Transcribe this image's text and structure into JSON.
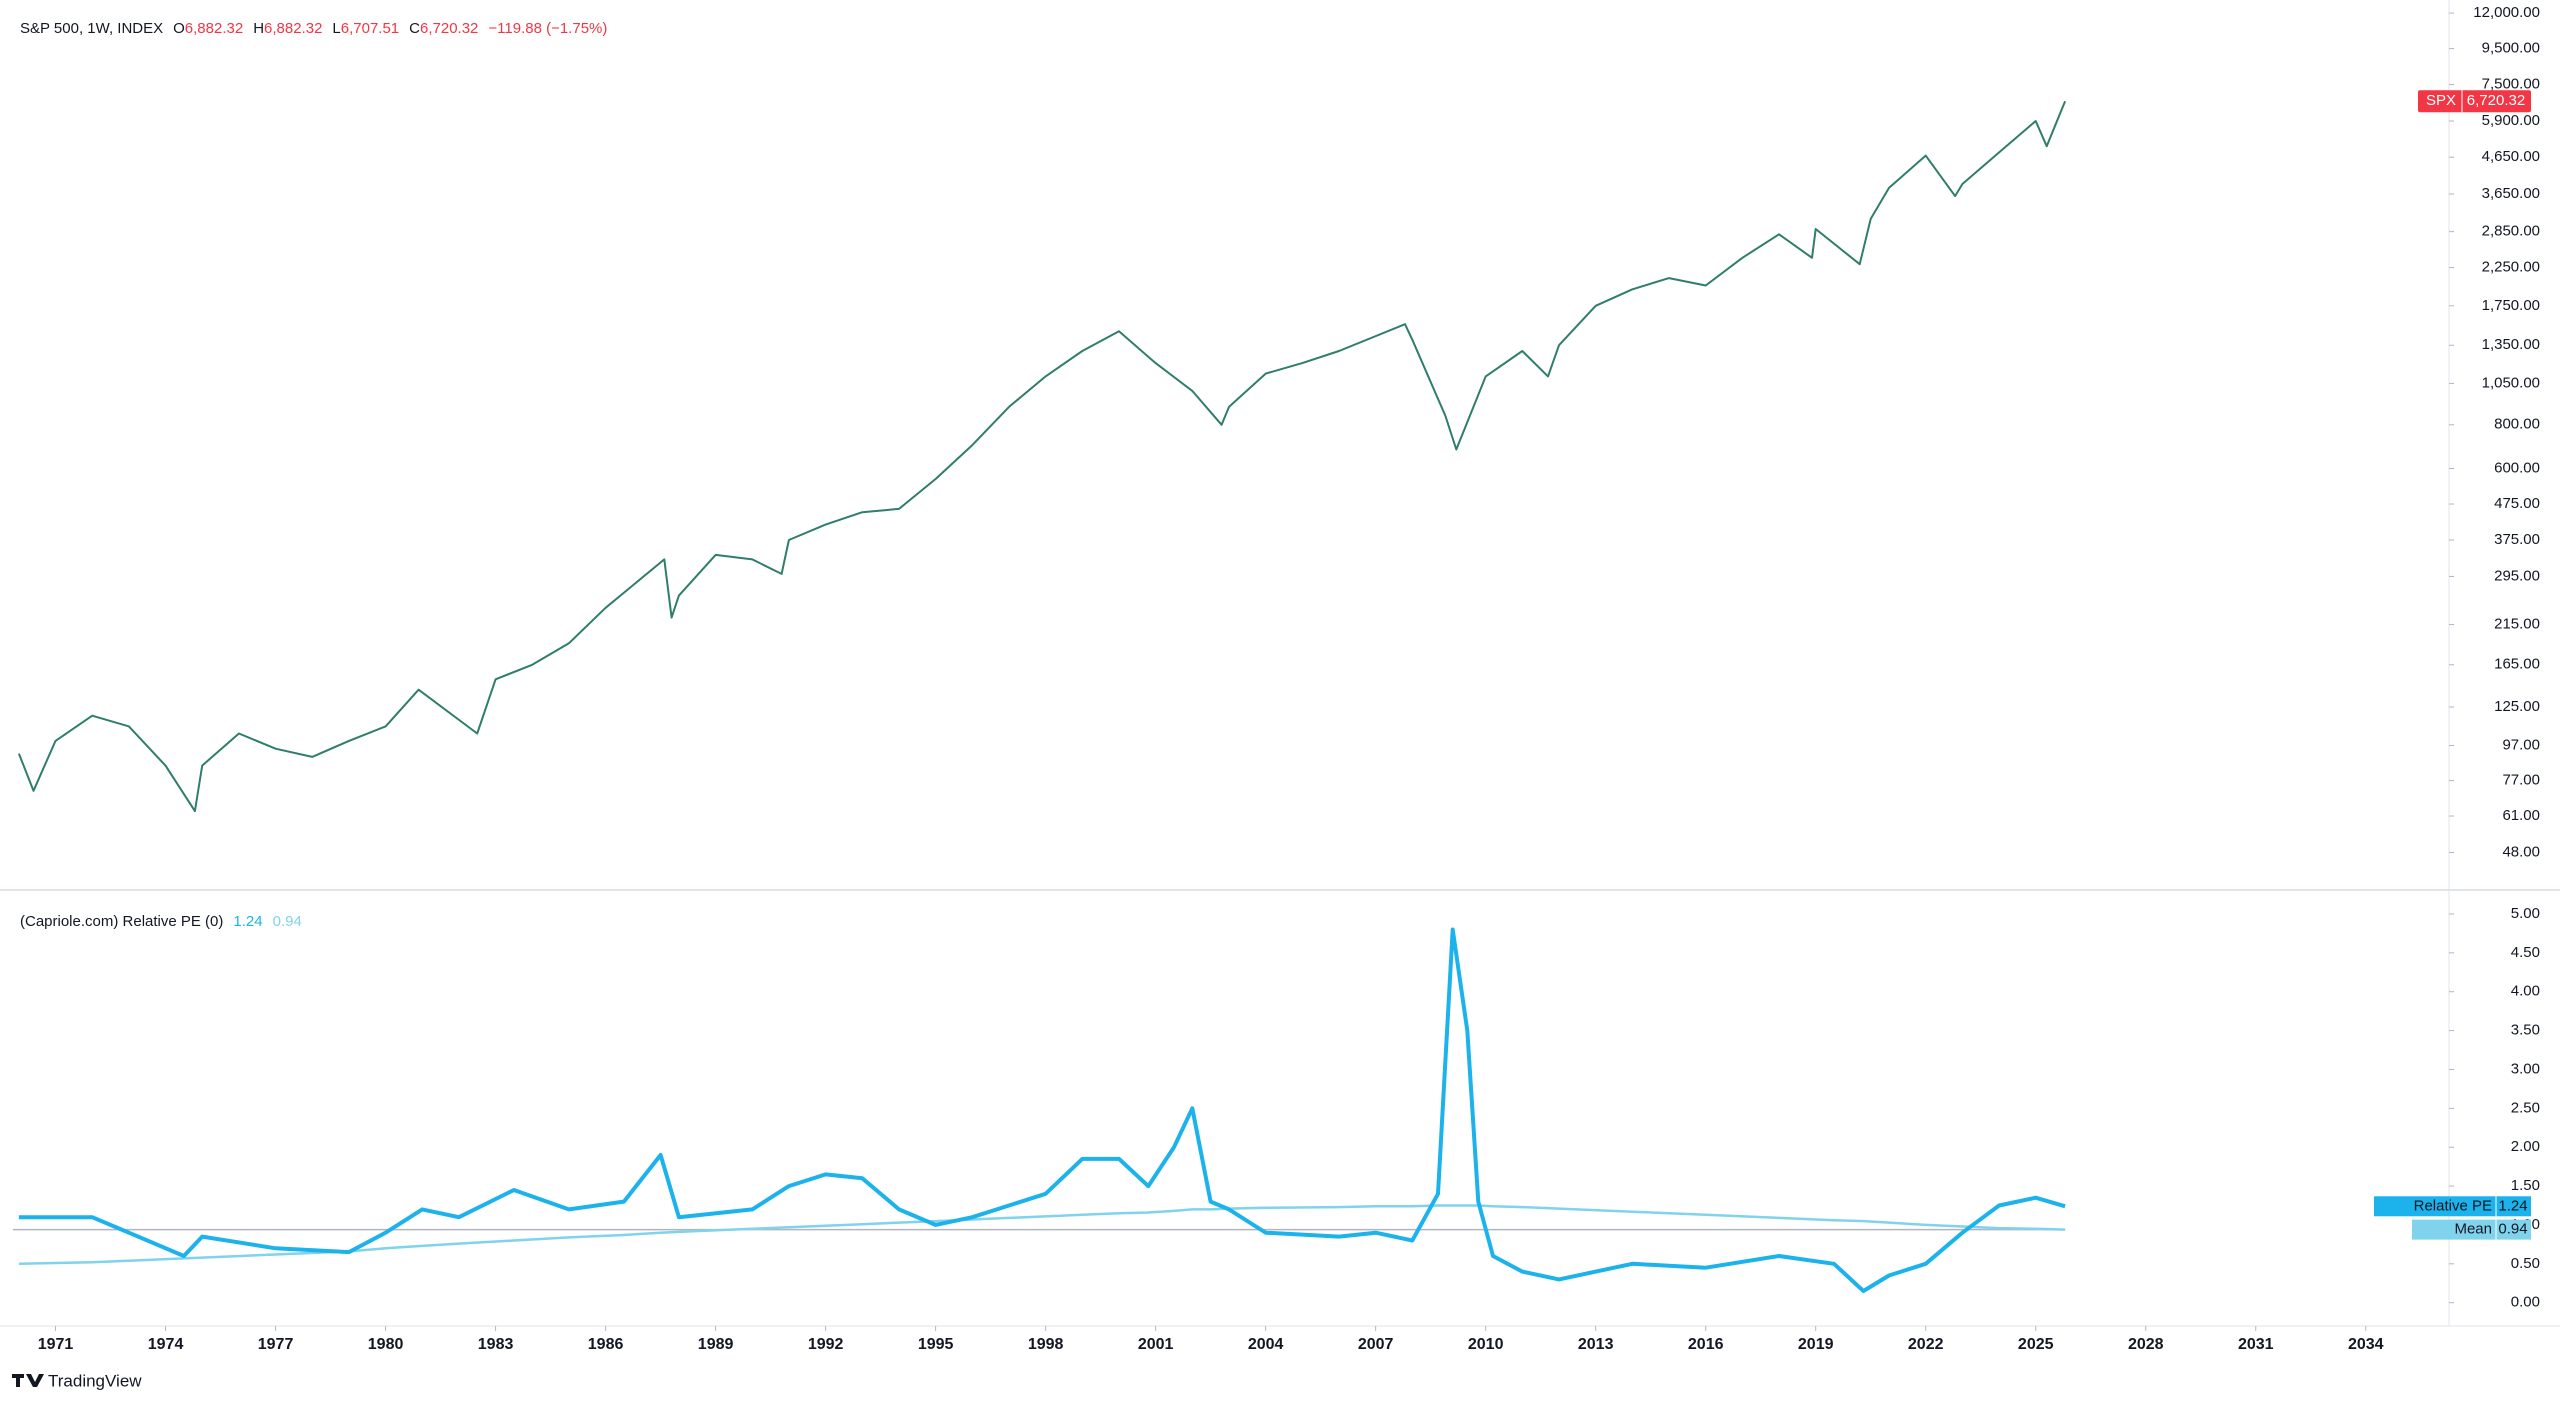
{
  "chart_data": [
    {
      "type": "line",
      "title": "S&P 500, 1W, INDEX",
      "log_scale": true,
      "ohlc": [
        {
          "label": "O",
          "value": "6,882.32"
        },
        {
          "label": "H",
          "value": "6,882.32"
        },
        {
          "label": "L",
          "value": "6,707.51"
        },
        {
          "label": "C",
          "value": "6,720.32"
        }
      ],
      "change": "−119.88 (−1.75%)",
      "x": [
        1970,
        1970.4,
        1971,
        1972,
        1973,
        1974,
        1974.8,
        1975,
        1976,
        1977,
        1978,
        1979,
        1980,
        1980.9,
        1982.5,
        1983,
        1984,
        1985,
        1986,
        1987.6,
        1987.8,
        1988,
        1989,
        1990,
        1990.8,
        1991,
        1992,
        1993,
        1994,
        1995,
        1996,
        1997,
        1998,
        1999,
        2000,
        2001,
        2002,
        2002.8,
        2003,
        2004,
        2005,
        2006,
        2007.8,
        2008,
        2008.9,
        2009.2,
        2010,
        2011,
        2011.7,
        2012,
        2013,
        2014,
        2015,
        2016,
        2017,
        2018,
        2018.9,
        2019,
        2020.2,
        2020.5,
        2021,
        2022,
        2022.8,
        2023,
        2024,
        2025,
        2025.3,
        2025.8
      ],
      "series": [
        {
          "name": "SPX",
          "color": "#2f7d6b",
          "values": [
            92,
            72,
            100,
            118,
            110,
            85,
            63,
            85,
            105,
            95,
            90,
            100,
            110,
            140,
            105,
            150,
            165,
            190,
            240,
            330,
            225,
            260,
            340,
            330,
            300,
            375,
            415,
            450,
            460,
            560,
            700,
            900,
            1100,
            1300,
            1480,
            1200,
            1000,
            800,
            900,
            1120,
            1200,
            1300,
            1550,
            1400,
            850,
            680,
            1100,
            1300,
            1100,
            1350,
            1750,
            1950,
            2100,
            2000,
            2400,
            2800,
            2400,
            2900,
            2300,
            3100,
            3800,
            4700,
            3600,
            3900,
            4800,
            5900,
            5000,
            6720.32
          ]
        }
      ],
      "xlim": [
        1969.84,
        2036.27
      ],
      "ylim": [
        37.5,
        13080
      ],
      "yticks": [
        {
          "value": 12000,
          "label": "12,000.00"
        },
        {
          "value": 9500,
          "label": "9,500.00"
        },
        {
          "value": 7500,
          "label": "7,500.00"
        },
        {
          "value": 5900,
          "label": "5,900.00"
        },
        {
          "value": 4650,
          "label": "4,650.00"
        },
        {
          "value": 3650,
          "label": "3,650.00"
        },
        {
          "value": 2850,
          "label": "2,850.00"
        },
        {
          "value": 2250,
          "label": "2,250.00"
        },
        {
          "value": 1750,
          "label": "1,750.00"
        },
        {
          "value": 1350,
          "label": "1,350.00"
        },
        {
          "value": 1050,
          "label": "1,050.00"
        },
        {
          "value": 800,
          "label": "800.00"
        },
        {
          "value": 600,
          "label": "600.00"
        },
        {
          "value": 475,
          "label": "475.00"
        },
        {
          "value": 375,
          "label": "375.00"
        },
        {
          "value": 295,
          "label": "295.00"
        },
        {
          "value": 215,
          "label": "215.00"
        },
        {
          "value": 165,
          "label": "165.00"
        },
        {
          "value": 125,
          "label": "125.00"
        },
        {
          "value": 97,
          "label": "97.00"
        },
        {
          "value": 77,
          "label": "77.00"
        },
        {
          "value": 61,
          "label": "61.00"
        },
        {
          "value": 48,
          "label": "48.00"
        }
      ]
    },
    {
      "type": "line",
      "title": "(Capriole.com) Relative PE (0)",
      "x": [
        1970,
        1972,
        1973,
        1974.5,
        1975,
        1977,
        1979,
        1980,
        1981,
        1982,
        1983.5,
        1985,
        1986.5,
        1987.5,
        1988,
        1990,
        1991,
        1992,
        1993,
        1994,
        1995,
        1996,
        1997,
        1998,
        1999,
        2000,
        2000.8,
        2001.5,
        2002,
        2002.5,
        2003,
        2004,
        2006,
        2007,
        2008,
        2008.7,
        2009.1,
        2009.5,
        2009.8,
        2010.2,
        2011,
        2012,
        2014,
        2016,
        2018,
        2019.5,
        2020.3,
        2021,
        2022,
        2023,
        2024,
        2025,
        2025.8
      ],
      "series": [
        {
          "name": "Relative PE",
          "color": "#1cb2ec",
          "values": [
            1.1,
            1.1,
            0.9,
            0.6,
            0.85,
            0.7,
            0.65,
            0.9,
            1.2,
            1.1,
            1.45,
            1.2,
            1.3,
            1.9,
            1.1,
            1.2,
            1.5,
            1.65,
            1.6,
            1.2,
            1.0,
            1.1,
            1.25,
            1.4,
            1.85,
            1.85,
            1.5,
            2.0,
            2.5,
            1.3,
            1.2,
            0.9,
            0.85,
            0.9,
            0.8,
            1.4,
            4.8,
            3.5,
            1.3,
            0.6,
            0.4,
            0.3,
            0.5,
            0.45,
            0.6,
            0.5,
            0.15,
            0.35,
            0.5,
            0.9,
            1.25,
            1.35,
            1.24
          ]
        },
        {
          "name": "Mean",
          "color": "#7fd3ec",
          "values": [
            0.5,
            0.52,
            0.54,
            0.57,
            0.58,
            0.62,
            0.66,
            0.7,
            0.73,
            0.76,
            0.8,
            0.84,
            0.87,
            0.9,
            0.91,
            0.95,
            0.97,
            0.99,
            1.01,
            1.03,
            1.05,
            1.07,
            1.09,
            1.11,
            1.13,
            1.15,
            1.16,
            1.18,
            1.2,
            1.2,
            1.21,
            1.22,
            1.23,
            1.24,
            1.24,
            1.25,
            1.25,
            1.25,
            1.25,
            1.24,
            1.23,
            1.21,
            1.17,
            1.13,
            1.09,
            1.06,
            1.05,
            1.03,
            1.0,
            0.98,
            0.96,
            0.95,
            0.94
          ]
        }
      ],
      "hline": 0.94,
      "xlim": [
        1969.84,
        2036.27
      ],
      "ylim": [
        -0.3,
        5.27
      ],
      "yticks": [
        {
          "value": 0,
          "label": "0.00"
        },
        {
          "value": 0.5,
          "label": "0.50"
        },
        {
          "value": 1,
          "label": "1.00"
        },
        {
          "value": 1.5,
          "label": "1.50"
        },
        {
          "value": 2,
          "label": "2.00"
        },
        {
          "value": 2.5,
          "label": "2.50"
        },
        {
          "value": 3,
          "label": "3.00"
        },
        {
          "value": 3.5,
          "label": "3.50"
        },
        {
          "value": 4,
          "label": "4.00"
        },
        {
          "value": 4.5,
          "label": "4.50"
        },
        {
          "value": 5,
          "label": "5.00"
        }
      ],
      "xticks": [
        1971,
        1974,
        1977,
        1980,
        1983,
        1986,
        1989,
        1992,
        1995,
        1998,
        2001,
        2004,
        2007,
        2010,
        2013,
        2016,
        2019,
        2022,
        2025,
        2028,
        2031,
        2034
      ]
    }
  ],
  "footer": {
    "brand": "TradingView"
  }
}
